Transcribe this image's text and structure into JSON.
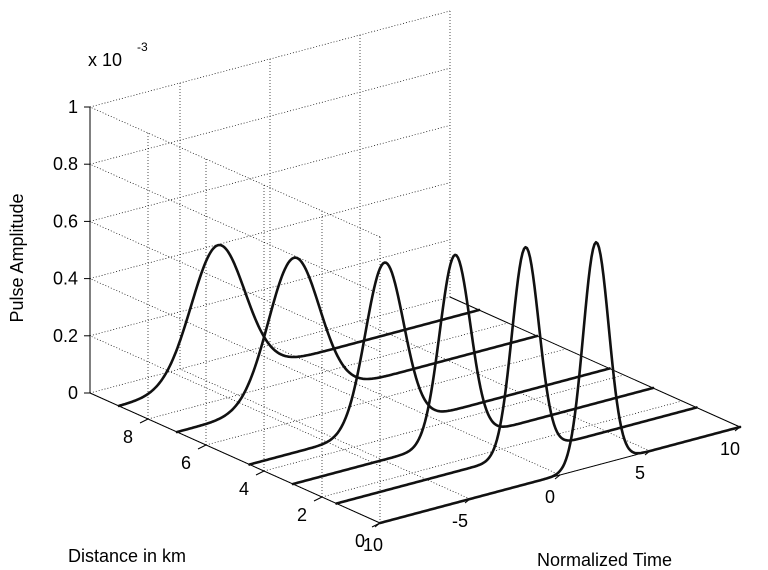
{
  "chart_data": {
    "type": "line",
    "view": "3d-waterfall",
    "title": "",
    "xlabel": "Normalized Time",
    "ylabel": "Distance in km",
    "zlabel": "Pulse Amplitude",
    "z_exponent_label": {
      "base": "x 10",
      "exponent": "-3"
    },
    "xlim": [
      -10,
      10
    ],
    "ylim": [
      0,
      10
    ],
    "zlim": [
      0,
      0.001
    ],
    "x_ticks": [
      "-10",
      "-5",
      "0",
      "5",
      "10"
    ],
    "y_ticks": [
      "0",
      "2",
      "4",
      "6",
      "8"
    ],
    "z_ticks": [
      "0",
      "0.2",
      "0.4",
      "0.6",
      "0.8",
      "1"
    ],
    "grid": true,
    "series": [
      {
        "distance": 0,
        "peak_time": 2.0,
        "peak": 0.00078,
        "width": 1.0
      },
      {
        "distance": 1.5,
        "peak_time": 0.5,
        "peak": 0.00072,
        "width": 1.05
      },
      {
        "distance": 3,
        "peak_time": -1.0,
        "peak": 0.00065,
        "width": 1.2
      },
      {
        "distance": 4.5,
        "peak_time": -2.5,
        "peak": 0.00058,
        "width": 1.5
      },
      {
        "distance": 7,
        "peak_time": -3.5,
        "peak": 0.0005,
        "width": 2.0
      },
      {
        "distance": 9,
        "peak_time": -4.5,
        "peak": 0.00047,
        "width": 2.1
      }
    ]
  }
}
